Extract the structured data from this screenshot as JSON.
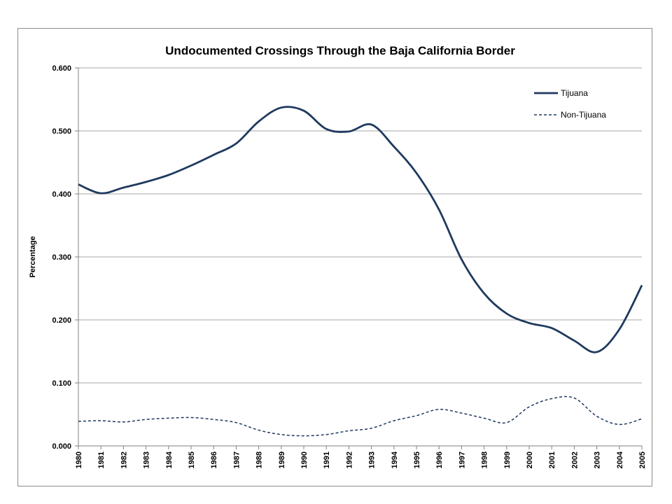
{
  "chart_data": {
    "type": "line",
    "title": "Undocumented Crossings Through the Baja California Border",
    "xlabel": "",
    "ylabel": "Percentage",
    "x": [
      "1980",
      "1981",
      "1982",
      "1983",
      "1984",
      "1985",
      "1986",
      "1987",
      "1988",
      "1989",
      "1990",
      "1991",
      "1992",
      "1993",
      "1994",
      "1995",
      "1996",
      "1997",
      "1998",
      "1999",
      "2000",
      "2001",
      "2002",
      "2003",
      "2004",
      "2005"
    ],
    "ylim": [
      0,
      0.6
    ],
    "yticks": [
      "0.000",
      "0.100",
      "0.200",
      "0.300",
      "0.400",
      "0.500",
      "0.600"
    ],
    "grid": true,
    "legend_position": "top-right",
    "series": [
      {
        "name": "Tijuana",
        "style": "solid",
        "color": "#1f3a5f",
        "values": [
          0.415,
          0.401,
          0.41,
          0.419,
          0.43,
          0.445,
          0.462,
          0.48,
          0.515,
          0.537,
          0.532,
          0.503,
          0.499,
          0.51,
          0.475,
          0.433,
          0.375,
          0.296,
          0.242,
          0.21,
          0.195,
          0.187,
          0.167,
          0.149,
          0.185,
          0.255
        ]
      },
      {
        "name": "Non-Tijuana",
        "style": "dashed",
        "color": "#1f3a5f",
        "values": [
          0.039,
          0.04,
          0.038,
          0.042,
          0.044,
          0.045,
          0.042,
          0.037,
          0.025,
          0.018,
          0.016,
          0.018,
          0.024,
          0.028,
          0.04,
          0.048,
          0.058,
          0.052,
          0.044,
          0.037,
          0.062,
          0.075,
          0.076,
          0.047,
          0.034,
          0.043
        ]
      }
    ]
  }
}
